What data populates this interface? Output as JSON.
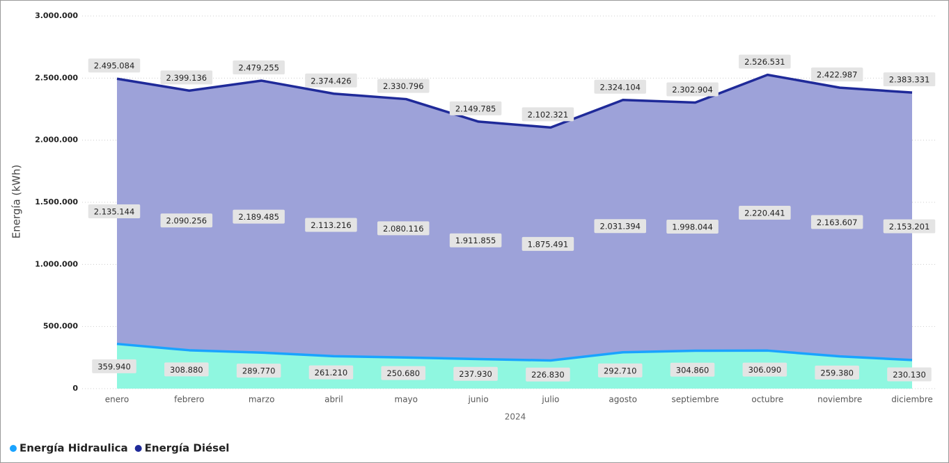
{
  "chart_data": {
    "type": "stacked-area",
    "y_label": "Energía (kWh)",
    "x_label": "2024",
    "categories": [
      "enero",
      "febrero",
      "marzo",
      "abril",
      "mayo",
      "junio",
      "julio",
      "agosto",
      "septiembre",
      "octubre",
      "noviembre",
      "diciembre"
    ],
    "series": [
      {
        "name": "Energía Hidraulica",
        "color": "#1aa3ff",
        "fill": "#8ff7e0",
        "values": [
          359940,
          308880,
          289770,
          261210,
          250680,
          237930,
          226830,
          292710,
          304860,
          306090,
          259380,
          230130
        ],
        "value_labels": [
          "359.940",
          "308.880",
          "289.770",
          "261.210",
          "250.680",
          "237.930",
          "226.830",
          "292.710",
          "304.860",
          "306.090",
          "259.380",
          "230.130"
        ]
      },
      {
        "name": "Energía Diésel",
        "color": "#1f2a99",
        "fill": "#9da2d9",
        "values": [
          2135144,
          2090256,
          2189485,
          2113216,
          2080116,
          1911855,
          1875491,
          2031394,
          1998044,
          2220441,
          2163607,
          2153201
        ],
        "value_labels": [
          "2.135.144",
          "2.090.256",
          "2.189.485",
          "2.113.216",
          "2.080.116",
          "1.911.855",
          "1.875.491",
          "2.031.394",
          "1.998.044",
          "2.220.441",
          "2.163.607",
          "2.153.201"
        ]
      }
    ],
    "total_labels": [
      "2.495.084",
      "2.399.136",
      "2.479.255",
      "2.374.426",
      "2.330.796",
      "2.149.785",
      "2.102.321",
      "2.324.104",
      "2.302.904",
      "2.526.531",
      "2.422.987",
      "2.383.331"
    ],
    "ylim": [
      0,
      3000000
    ],
    "yticks": [
      0,
      {
        "value": 500000,
        "label": "500.000"
      },
      {
        "value": 1000000,
        "label": "1.000.000"
      },
      {
        "value": 1500000,
        "label": "1.500.000"
      },
      {
        "value": 2000000,
        "label": "2.000.000"
      },
      {
        "value": 2500000,
        "label": "2.500.000"
      },
      {
        "value": 3000000,
        "label": "3.000.000"
      }
    ],
    "grid": true,
    "legend": "bottom-left"
  }
}
